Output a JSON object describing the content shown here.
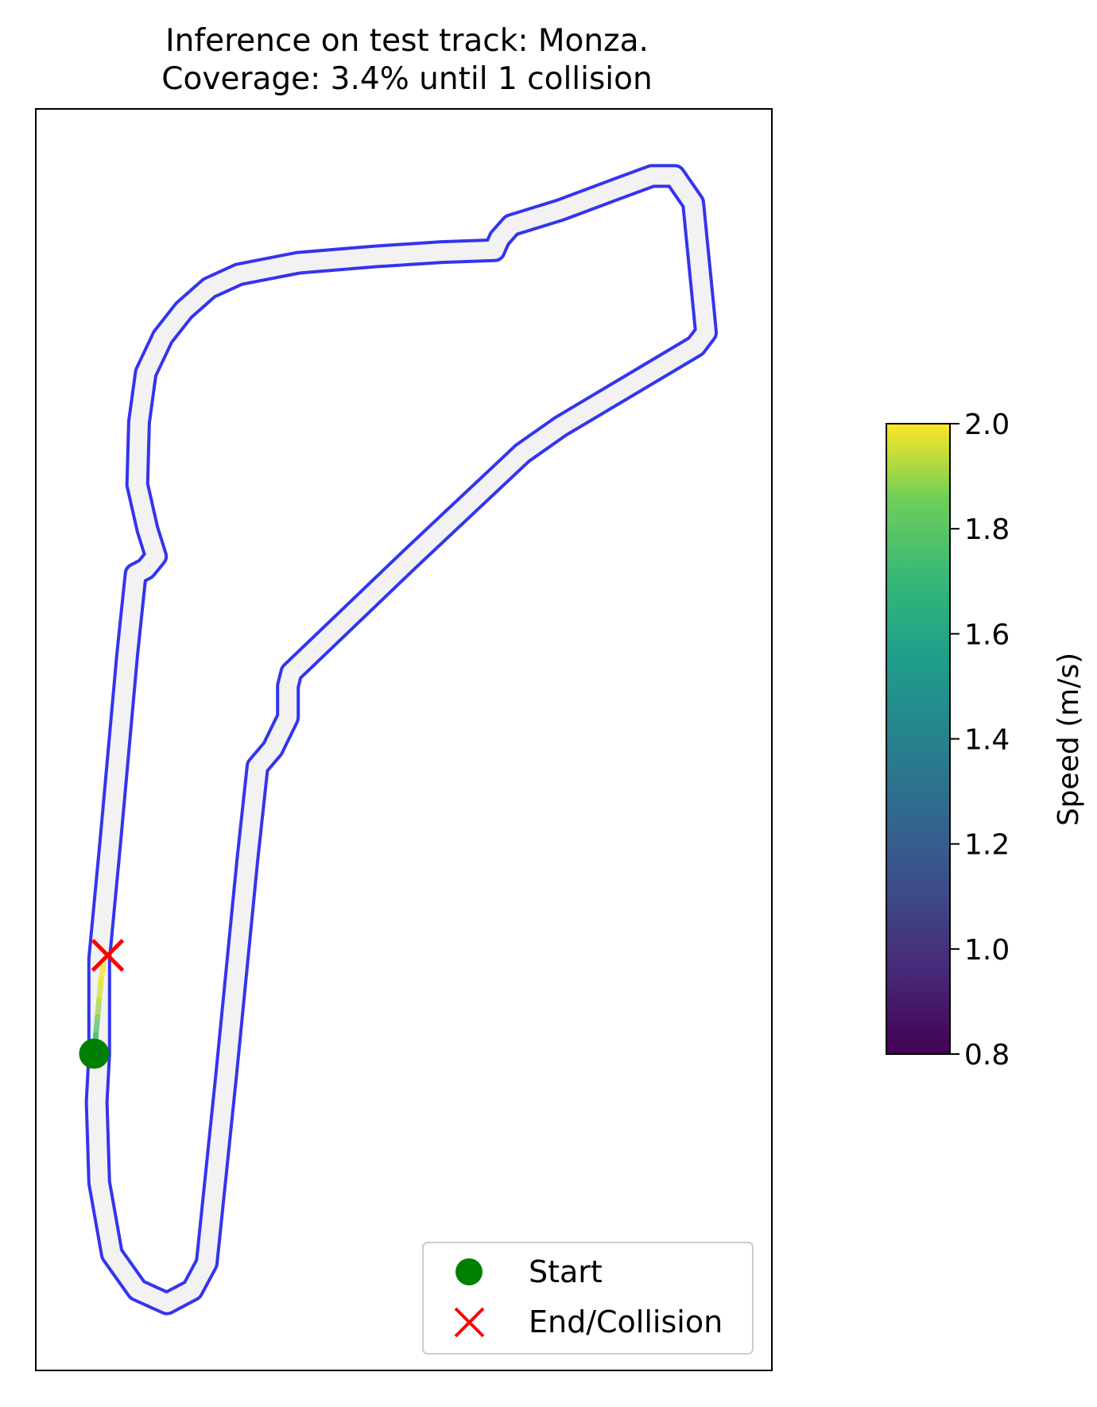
{
  "chart_data": {
    "type": "scatter",
    "title": "Inference on test track: Monza.",
    "subtitle": "Coverage: 3.4% until 1 collision",
    "track": {
      "centerline": [
        [
          95,
          1176
        ],
        [
          92,
          1230
        ],
        [
          95,
          1320
        ],
        [
          110,
          1400
        ],
        [
          140,
          1440
        ],
        [
          175,
          1455
        ],
        [
          205,
          1440
        ],
        [
          222,
          1410
        ],
        [
          245,
          1200
        ],
        [
          270,
          960
        ],
        [
          282,
          855
        ],
        [
          300,
          835
        ],
        [
          318,
          800
        ],
        [
          318,
          765
        ],
        [
          322,
          750
        ],
        [
          460,
          625
        ],
        [
          595,
          505
        ],
        [
          640,
          475
        ],
        [
          800,
          385
        ],
        [
          812,
          370
        ],
        [
          810,
          350
        ],
        [
          797,
          225
        ],
        [
          775,
          195
        ],
        [
          748,
          195
        ],
        [
          705,
          210
        ],
        [
          640,
          233
        ],
        [
          582,
          250
        ],
        [
          568,
          265
        ],
        [
          562,
          278
        ],
        [
          500,
          280
        ],
        [
          420,
          285
        ],
        [
          330,
          292
        ],
        [
          260,
          305
        ],
        [
          225,
          320
        ],
        [
          195,
          345
        ],
        [
          170,
          375
        ],
        [
          150,
          415
        ],
        [
          142,
          470
        ],
        [
          140,
          540
        ],
        [
          152,
          590
        ],
        [
          162,
          620
        ],
        [
          150,
          634
        ],
        [
          138,
          640
        ],
        [
          128,
          730
        ],
        [
          108,
          940
        ],
        [
          95,
          1070
        ],
        [
          95,
          1176
        ]
      ],
      "boundary_color": "#3434ee",
      "surface_color": "#f2f2f2"
    },
    "trajectory": [
      {
        "x": 89,
        "y": 1176,
        "speed": 1.55
      },
      {
        "x": 91,
        "y": 1155,
        "speed": 1.7
      },
      {
        "x": 93,
        "y": 1135,
        "speed": 1.85
      },
      {
        "x": 95,
        "y": 1115,
        "speed": 1.95
      },
      {
        "x": 97,
        "y": 1095,
        "speed": 1.98
      },
      {
        "x": 100,
        "y": 1075,
        "speed": 2.0
      }
    ],
    "start": {
      "x": 89,
      "y": 1176,
      "label": "Start",
      "color": "#008000"
    },
    "end": {
      "x": 105,
      "y": 1066,
      "label": "End/Collision",
      "color": "#ff0000"
    },
    "axes": {
      "xlim": [
        20,
        890
      ],
      "ylim": [
        1530,
        120
      ],
      "ticks": "none"
    },
    "legend": {
      "placement": "lower right",
      "entries": [
        "Start",
        "End/Collision"
      ]
    },
    "colorbar": {
      "label": "Speed (m/s)",
      "colormap": "viridis",
      "range": [
        0.8,
        2.0
      ],
      "ticks": [
        "0.8",
        "1.0",
        "1.2",
        "1.4",
        "1.6",
        "1.8",
        "2.0"
      ]
    }
  }
}
